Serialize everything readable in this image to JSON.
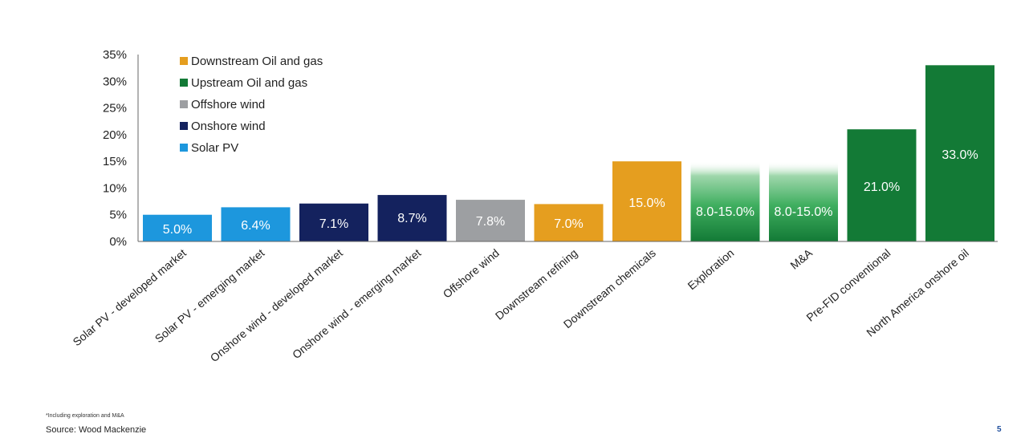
{
  "chart_data": {
    "type": "bar",
    "yticks": [
      "0%",
      "5%",
      "10%",
      "15%",
      "20%",
      "25%",
      "30%",
      "35%"
    ],
    "ylim": [
      0,
      35
    ],
    "grid": false,
    "legend_position": "top-left",
    "legend": [
      {
        "name": "Downstream Oil and gas",
        "color": "#e59e1f"
      },
      {
        "name": "Upstream Oil and gas",
        "color": "#137a36"
      },
      {
        "name": "Offshore wind",
        "color": "#9d9fa2"
      },
      {
        "name": "Onshore wind",
        "color": "#14225e"
      },
      {
        "name": "Solar PV",
        "color": "#1d97dd"
      }
    ],
    "categories": [
      "Solar PV - developed market",
      "Solar PV - emerging market",
      "Onshore wind - developed market",
      "Onshore wind - emerging market",
      "Offshore wind",
      "Downstream refining",
      "Downstream chemicals",
      "Exploration",
      "M&A",
      "Pre-FID conventional",
      "North America onshore oil"
    ],
    "values": [
      5.0,
      6.4,
      7.1,
      8.7,
      7.8,
      7.0,
      15.0,
      15.0,
      15.0,
      21.0,
      33.0
    ],
    "range_low": [
      null,
      null,
      null,
      null,
      null,
      null,
      null,
      8.0,
      8.0,
      null,
      null
    ],
    "data_labels": [
      "5.0%",
      "6.4%",
      "7.1%",
      "8.7%",
      "7.8%",
      "7.0%",
      "15.0%",
      "8.0-15.0%",
      "8.0-15.0%",
      "21.0%",
      "33.0%"
    ],
    "series_index": [
      4,
      4,
      3,
      3,
      2,
      0,
      0,
      1,
      1,
      1,
      1
    ]
  },
  "footnote": "*Including exploration and M&A",
  "source": "Source: Wood Mackenzie",
  "page_number": "5"
}
